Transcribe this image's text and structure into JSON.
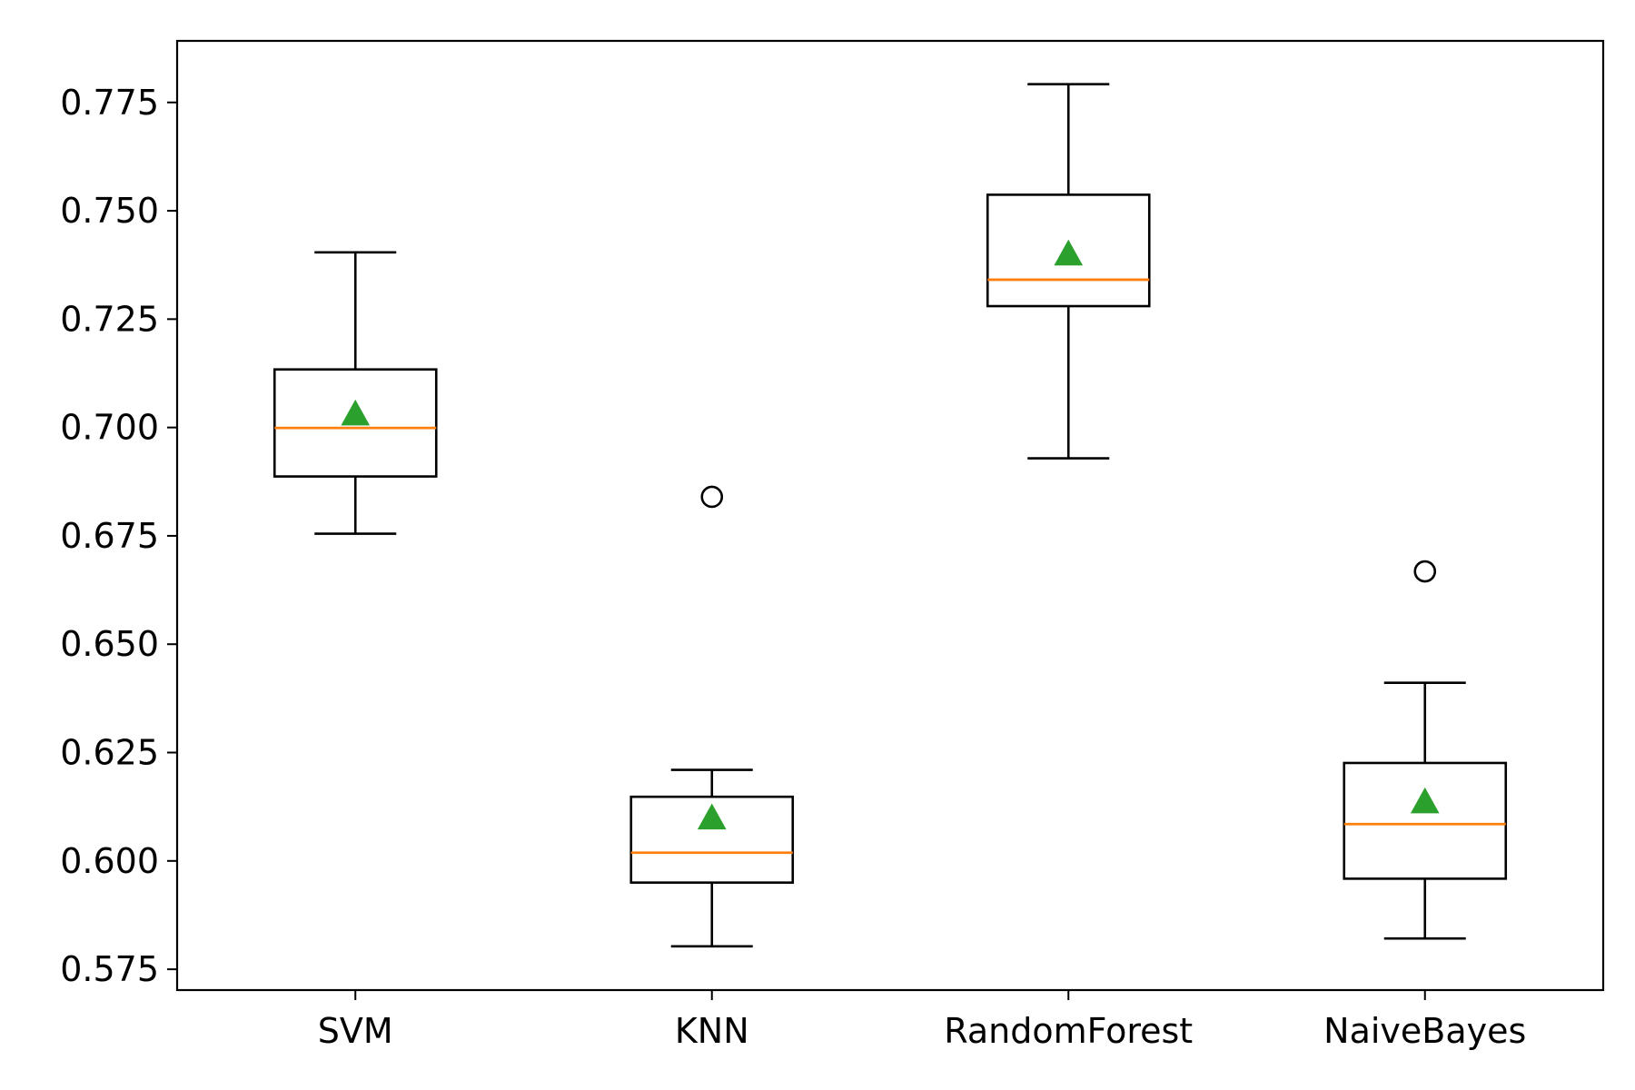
{
  "chart_data": {
    "type": "box",
    "title": "",
    "xlabel": "",
    "ylabel": "",
    "categories": [
      "SVM",
      "KNN",
      "RandomForest",
      "NaiveBayes"
    ],
    "ylim": [
      0.5702,
      0.7892
    ],
    "yticks": [
      0.575,
      0.6,
      0.625,
      0.65,
      0.675,
      0.7,
      0.725,
      0.75,
      0.775
    ],
    "ytick_labels": [
      "0.575",
      "0.600",
      "0.625",
      "0.650",
      "0.675",
      "0.700",
      "0.725",
      "0.750",
      "0.775"
    ],
    "grid": false,
    "boxes": [
      {
        "category": "SVM",
        "whisker_low": 0.6755,
        "q1": 0.6887,
        "median": 0.6999,
        "q3": 0.7134,
        "whisker_high": 0.7404,
        "mean": 0.7031,
        "outliers": []
      },
      {
        "category": "KNN",
        "whisker_low": 0.5803,
        "q1": 0.595,
        "median": 0.6019,
        "q3": 0.6148,
        "whisker_high": 0.621,
        "mean": 0.6099,
        "outliers": [
          0.684
        ]
      },
      {
        "category": "RandomForest",
        "whisker_low": 0.6929,
        "q1": 0.728,
        "median": 0.7341,
        "q3": 0.7537,
        "whisker_high": 0.7792,
        "mean": 0.74,
        "outliers": []
      },
      {
        "category": "NaiveBayes",
        "whisker_low": 0.5821,
        "q1": 0.5959,
        "median": 0.6085,
        "q3": 0.6226,
        "whisker_high": 0.6411,
        "mean": 0.6136,
        "outliers": [
          0.6668
        ]
      }
    ],
    "colors": {
      "box": "#000000",
      "median": "#ff7f0e",
      "mean": "#2ca02c",
      "outlier": "#000000"
    }
  }
}
